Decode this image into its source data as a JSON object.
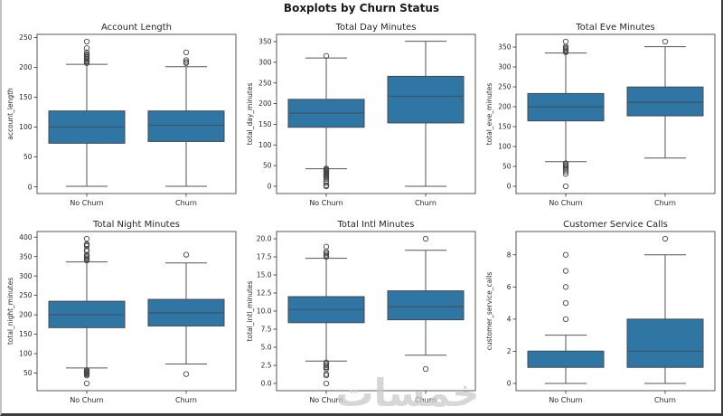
{
  "title": "Boxplots by Churn Status",
  "watermark": "خمسات",
  "colors": {
    "box_fill": "#2f76a5",
    "box_edge": "#44484c",
    "whisker": "#565656",
    "cap": "#565656",
    "median": "#3a576b",
    "flier": "#474747",
    "axis": "#2e2e2e",
    "text": "#262626"
  },
  "chart_data": [
    {
      "type": "boxplot",
      "title": "Account Length",
      "ylabel": "account_length",
      "categories": [
        "No Churn",
        "Churn"
      ],
      "ylim": [
        -11.1,
        255.1
      ],
      "yticks": [
        0,
        50,
        100,
        150,
        200,
        250
      ],
      "ytick_labels": [
        "0",
        "50",
        "100",
        "150",
        "200",
        "250"
      ],
      "grid": false,
      "series": [
        {
          "name": "No Churn",
          "whislo": 1,
          "q1": 73,
          "med": 100,
          "q3": 127,
          "whishi": 205,
          "fliers": [
            207,
            209,
            210,
            212,
            214,
            216,
            218,
            220,
            222,
            225,
            232,
            243
          ]
        },
        {
          "name": "Churn",
          "whislo": 1,
          "q1": 76,
          "med": 103,
          "q3": 127,
          "whishi": 201,
          "fliers": [
            207,
            209,
            212,
            225
          ]
        }
      ]
    },
    {
      "type": "boxplot",
      "title": "Total Day Minutes",
      "ylabel": "total_day_minutes",
      "categories": [
        "No Churn",
        "Churn"
      ],
      "ylim": [
        -17.5,
        367.5
      ],
      "yticks": [
        0,
        50,
        100,
        150,
        200,
        250,
        300,
        350
      ],
      "ytick_labels": [
        "0",
        "50",
        "100",
        "150",
        "200",
        "250",
        "300",
        "350"
      ],
      "grid": false,
      "series": [
        {
          "name": "No Churn",
          "whislo": 42.5,
          "q1": 142.8,
          "med": 177.2,
          "q3": 210.3,
          "whishi": 310.4,
          "fliers": [
            315.6,
            43,
            41,
            39,
            37,
            35,
            33,
            31,
            29,
            27,
            25,
            22,
            18,
            13,
            8,
            2,
            0
          ]
        },
        {
          "name": "Churn",
          "whislo": 0,
          "q1": 153.3,
          "med": 217.6,
          "q3": 266.0,
          "whishi": 350.8,
          "fliers": []
        }
      ]
    },
    {
      "type": "boxplot",
      "title": "Total Eve Minutes",
      "ylabel": "total_eve_minutes",
      "categories": [
        "No Churn",
        "Churn"
      ],
      "ylim": [
        -18.2,
        381.9
      ],
      "yticks": [
        0,
        50,
        100,
        150,
        200,
        250,
        300,
        350
      ],
      "ytick_labels": [
        "0",
        "50",
        "100",
        "150",
        "200",
        "250",
        "300",
        "350"
      ],
      "grid": false,
      "series": [
        {
          "name": "No Churn",
          "whislo": 62.0,
          "q1": 164.5,
          "med": 199.6,
          "q3": 233.2,
          "whishi": 335.0,
          "fliers": [
            337,
            339,
            342,
            345,
            348,
            351,
            363.7,
            58,
            55,
            52,
            49,
            46,
            42,
            37,
            31,
            0
          ]
        },
        {
          "name": "Churn",
          "whislo": 70.9,
          "q1": 177.1,
          "med": 211.3,
          "q3": 249.6,
          "whishi": 351.0,
          "fliers": [
            363.7
          ]
        }
      ]
    },
    {
      "type": "boxplot",
      "title": "Total Night Minutes",
      "ylabel": "total_night_minutes",
      "categories": [
        "No Churn",
        "Churn"
      ],
      "ylim": [
        4.6,
        414.5
      ],
      "yticks": [
        50,
        100,
        150,
        200,
        250,
        300,
        350,
        400
      ],
      "ytick_labels": [
        "50",
        "100",
        "150",
        "200",
        "250",
        "300",
        "350",
        "400"
      ],
      "grid": false,
      "series": [
        {
          "name": "No Churn",
          "whislo": 63.0,
          "q1": 166.9,
          "med": 200.3,
          "q3": 234.9,
          "whishi": 336.2,
          "fliers": [
            340,
            342,
            345,
            348,
            351,
            354,
            364,
            367,
            377,
            380,
            382,
            395.9,
            57.5,
            55,
            53,
            51,
            49,
            47,
            43.7,
            23.2
          ]
        },
        {
          "name": "Churn",
          "whislo": 73.2,
          "q1": 171.3,
          "med": 204.8,
          "q3": 239.7,
          "whishi": 333.5,
          "fliers": [
            354.9,
            47.4
          ]
        }
      ]
    },
    {
      "type": "boxplot",
      "title": "Total Intl Minutes",
      "ylabel": "total_intl_minutes",
      "categories": [
        "No Churn",
        "Churn"
      ],
      "ylim": [
        -1.0,
        21.0
      ],
      "yticks": [
        0,
        2.5,
        5,
        7.5,
        10,
        12.5,
        15,
        17.5,
        20
      ],
      "ytick_labels": [
        "0.0",
        "2.5",
        "5.0",
        "7.5",
        "10.0",
        "12.5",
        "15.0",
        "17.5",
        "20.0"
      ],
      "grid": false,
      "series": [
        {
          "name": "No Churn",
          "whislo": 3.1,
          "q1": 8.4,
          "med": 10.2,
          "q3": 12.0,
          "whishi": 17.3,
          "fliers": [
            17.5,
            17.6,
            17.8,
            18.0,
            18.2,
            18.9,
            2.9,
            2.7,
            2.5,
            2.3,
            2.2,
            2.0,
            1.3,
            1.1,
            0.0
          ]
        },
        {
          "name": "Churn",
          "whislo": 3.9,
          "q1": 8.8,
          "med": 10.6,
          "q3": 12.8,
          "whishi": 18.4,
          "fliers": [
            20.0,
            2.0
          ]
        }
      ]
    },
    {
      "type": "boxplot",
      "title": "Customer Service Calls",
      "ylabel": "customer_service_calls",
      "categories": [
        "No Churn",
        "Churn"
      ],
      "ylim": [
        -0.45,
        9.45
      ],
      "yticks": [
        0,
        2,
        4,
        6,
        8
      ],
      "ytick_labels": [
        "0",
        "2",
        "4",
        "6",
        "8"
      ],
      "grid": false,
      "series": [
        {
          "name": "No Churn",
          "whislo": 0,
          "q1": 1,
          "med": 2,
          "q3": 2,
          "whishi": 3,
          "fliers": [
            4,
            5,
            6,
            7,
            8
          ]
        },
        {
          "name": "Churn",
          "whislo": 0,
          "q1": 1,
          "med": 2,
          "q3": 4,
          "whishi": 8,
          "fliers": [
            9
          ]
        }
      ]
    }
  ]
}
